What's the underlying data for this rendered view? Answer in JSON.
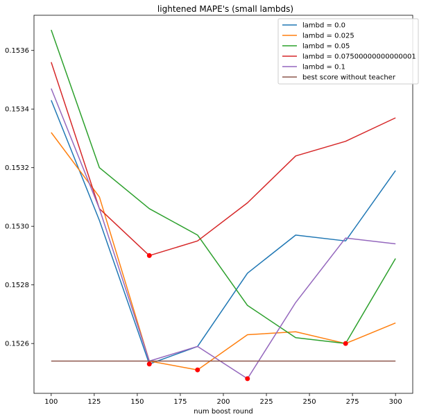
{
  "chart_data": {
    "type": "line",
    "title": "lightened MAPE's (small lambds)",
    "xlabel": "num boost round",
    "ylabel": "",
    "xlim": [
      90,
      310
    ],
    "ylim": [
      0.15243,
      0.15372
    ],
    "x": [
      100,
      128,
      157,
      185,
      214,
      242,
      271,
      300
    ],
    "x_ticks": [
      100,
      125,
      150,
      175,
      200,
      225,
      250,
      275,
      300
    ],
    "y_ticks": [
      0.1526,
      0.1528,
      0.153,
      0.1532,
      0.1534,
      0.1536
    ],
    "y_tick_labels": [
      "0.1526",
      "0.1528",
      "0.1530",
      "0.1532",
      "0.1534",
      "0.1536"
    ],
    "grid": false,
    "legend_position": "top-right",
    "series": [
      {
        "name": "lambd = 0.0",
        "color": "#1f77b4",
        "values": [
          0.15343,
          0.15302,
          0.15253,
          0.15259,
          0.15284,
          0.15297,
          0.15295,
          0.15319
        ]
      },
      {
        "name": "lambd = 0.025",
        "color": "#ff7f0e",
        "values": [
          0.15332,
          0.1531,
          0.15254,
          0.15251,
          0.15263,
          0.15264,
          0.1526,
          0.15267
        ]
      },
      {
        "name": "lambd = 0.05",
        "color": "#2ca02c",
        "values": [
          0.15367,
          0.1532,
          0.15306,
          0.15297,
          0.15273,
          0.15262,
          0.1526,
          0.15289
        ]
      },
      {
        "name": "lambd = 0.07500000000000001",
        "color": "#d62728",
        "values": [
          0.15356,
          0.15306,
          0.1529,
          0.15295,
          0.15308,
          0.15324,
          0.15329,
          0.15337
        ]
      },
      {
        "name": "lambd = 0.1",
        "color": "#9467bd",
        "values": [
          0.15347,
          0.15306,
          0.15254,
          0.15259,
          0.15248,
          0.15274,
          0.15296,
          0.15294
        ]
      },
      {
        "name": "best score without teacher",
        "color": "#8c564b",
        "values": [
          0.15254,
          0.15254,
          0.15254,
          0.15254,
          0.15254,
          0.15254,
          0.15254,
          0.15254
        ]
      }
    ],
    "minima_points": {
      "color": "#ff0000",
      "points": [
        {
          "x": 157,
          "y": 0.15253
        },
        {
          "x": 185,
          "y": 0.15251
        },
        {
          "x": 271,
          "y": 0.1526
        },
        {
          "x": 157,
          "y": 0.1529
        },
        {
          "x": 214,
          "y": 0.15248
        }
      ]
    }
  }
}
